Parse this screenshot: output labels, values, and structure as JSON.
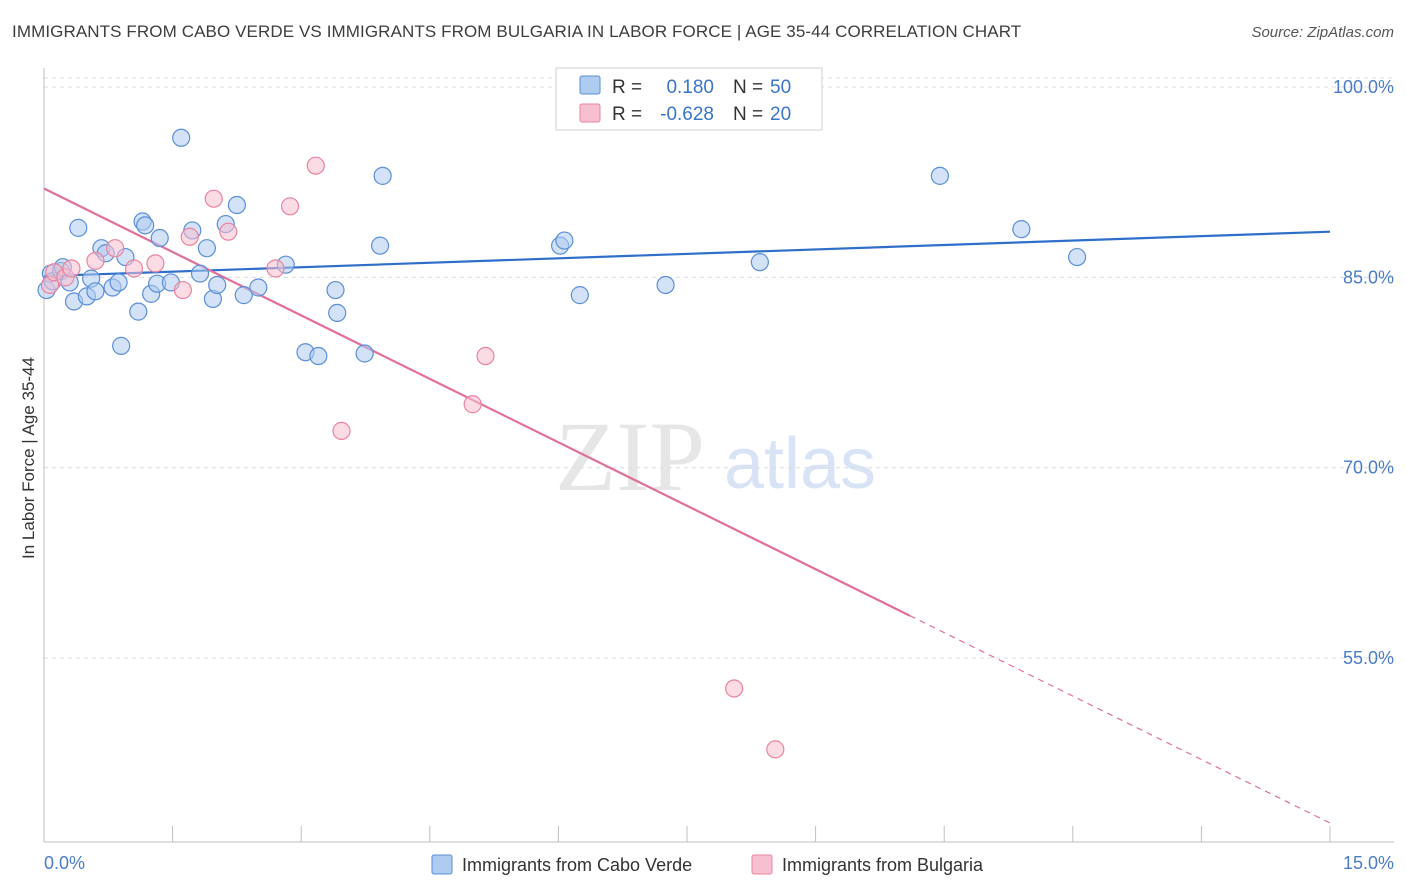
{
  "title": "IMMIGRANTS FROM CABO VERDE VS IMMIGRANTS FROM BULGARIA IN LABOR FORCE | AGE 35-44 CORRELATION CHART",
  "source": "Source: ZipAtlas.com",
  "watermark": {
    "zip": "ZIP",
    "atlas": "atlas"
  },
  "colors": {
    "blue": "#5b8fd8",
    "blue_fill": "#aecbf0",
    "blue_line": "#2f6fca",
    "pink": "#e8849f",
    "pink_fill": "#f7c0d0",
    "pink_line": "#e0709a",
    "tick_text": "#4a7cc9",
    "grid": "#dcdcdc"
  },
  "legend": {
    "row1": {
      "r_label": "R =",
      "r_value": "0.180",
      "n_label": "N =",
      "n_value": "50"
    },
    "row2": {
      "r_label": "R =",
      "r_value": "-0.628",
      "n_label": "N =",
      "n_value": "20"
    }
  },
  "chart_data": {
    "type": "scatter",
    "ylabel": "In Labor Force | Age 35-44",
    "xlim": [
      0,
      15
    ],
    "ylim": [
      40.5,
      101.5
    ],
    "x_tick_labels": [
      "0.0%",
      "15.0%"
    ],
    "y_ticks": [
      55,
      70,
      85,
      100
    ],
    "y_tick_labels": [
      "55.0%",
      "70.0%",
      "85.0%",
      "100.0%"
    ],
    "grid": true,
    "legend_position": "top-center",
    "series": [
      {
        "name": "Immigrants from Cabo Verde",
        "color": "#5b8fd8",
        "r": 0.18,
        "n": 50,
        "trend": {
          "x": [
            0,
            15
          ],
          "y": [
            85.1,
            88.6
          ],
          "dashed_from": null
        },
        "points": [
          [
            0.03,
            84.0
          ],
          [
            0.08,
            85.3
          ],
          [
            0.1,
            84.7
          ],
          [
            0.2,
            85.5
          ],
          [
            0.22,
            85.8
          ],
          [
            0.3,
            84.6
          ],
          [
            0.35,
            83.1
          ],
          [
            0.4,
            88.9
          ],
          [
            0.5,
            83.5
          ],
          [
            0.55,
            84.9
          ],
          [
            0.6,
            83.9
          ],
          [
            0.67,
            87.3
          ],
          [
            0.72,
            86.9
          ],
          [
            0.8,
            84.2
          ],
          [
            0.87,
            84.6
          ],
          [
            0.9,
            79.6
          ],
          [
            0.95,
            86.6
          ],
          [
            1.1,
            82.3
          ],
          [
            1.15,
            89.4
          ],
          [
            1.18,
            89.1
          ],
          [
            1.25,
            83.7
          ],
          [
            1.32,
            84.5
          ],
          [
            1.35,
            88.1
          ],
          [
            1.48,
            84.6
          ],
          [
            1.6,
            96.0
          ],
          [
            1.73,
            88.7
          ],
          [
            1.82,
            85.3
          ],
          [
            1.9,
            87.3
          ],
          [
            1.97,
            83.3
          ],
          [
            2.02,
            84.4
          ],
          [
            2.12,
            89.2
          ],
          [
            2.25,
            90.7
          ],
          [
            2.33,
            83.6
          ],
          [
            2.5,
            84.2
          ],
          [
            2.82,
            86.0
          ],
          [
            3.05,
            79.1
          ],
          [
            3.2,
            78.8
          ],
          [
            3.4,
            84.0
          ],
          [
            3.42,
            82.2
          ],
          [
            3.74,
            79.0
          ],
          [
            3.92,
            87.5
          ],
          [
            3.95,
            93.0
          ],
          [
            6.02,
            87.5
          ],
          [
            6.07,
            87.9
          ],
          [
            6.25,
            83.6
          ],
          [
            7.25,
            84.4
          ],
          [
            8.35,
            86.2
          ],
          [
            10.45,
            93.0
          ],
          [
            11.4,
            88.8
          ],
          [
            12.05,
            86.6
          ]
        ]
      },
      {
        "name": "Immigrants from Bulgaria",
        "color": "#e8849f",
        "r": -0.628,
        "n": 20,
        "trend": {
          "x": [
            0,
            15
          ],
          "y": [
            92.0,
            42.0
          ],
          "dashed_from": 10.1
        },
        "points": [
          [
            0.07,
            84.4
          ],
          [
            0.12,
            85.4
          ],
          [
            0.25,
            85.0
          ],
          [
            0.32,
            85.7
          ],
          [
            0.6,
            86.3
          ],
          [
            0.83,
            87.3
          ],
          [
            1.05,
            85.7
          ],
          [
            1.3,
            86.1
          ],
          [
            1.62,
            84.0
          ],
          [
            1.7,
            88.2
          ],
          [
            1.98,
            91.2
          ],
          [
            2.15,
            88.6
          ],
          [
            2.7,
            85.7
          ],
          [
            2.87,
            90.6
          ],
          [
            3.17,
            93.8
          ],
          [
            3.47,
            72.9
          ],
          [
            5.0,
            75.0
          ],
          [
            5.15,
            78.8
          ],
          [
            8.05,
            52.6
          ],
          [
            8.53,
            47.8
          ]
        ]
      }
    ]
  }
}
